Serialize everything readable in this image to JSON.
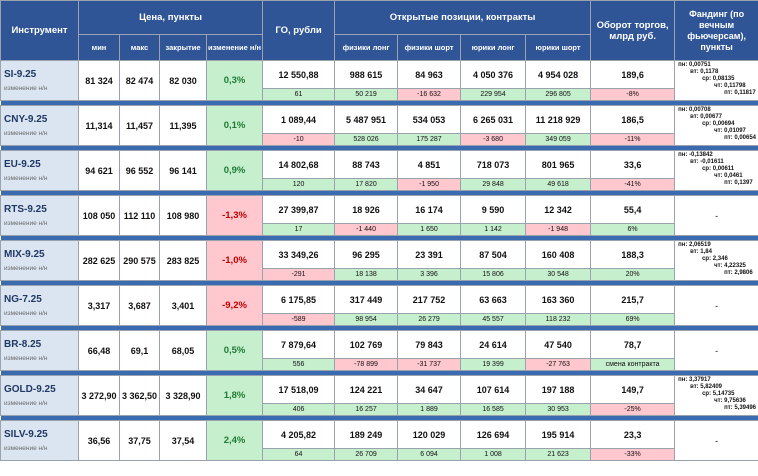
{
  "headers": {
    "instrument": "Инструмент",
    "price": "Цена, пункты",
    "go": "ГО, рубли",
    "oi": "Открытые позиции, контракты",
    "turnover": "Оборот торгов, млрд руб.",
    "funding": "Фандинг (по вечным фьючерсам), пункты",
    "min": "мин",
    "max": "макс",
    "close": "закрытие",
    "change": "изменение н/н",
    "phys_long": "физики лонг",
    "phys_short": "физики шорт",
    "jur_long": "юрики лонг",
    "jur_short": "юрики шорт"
  },
  "rows": [
    {
      "name": "SI-9.25",
      "sub": "изменение н/н",
      "min": "81 324",
      "max": "82 474",
      "close": "82 030",
      "chg": "0,3%",
      "chg_sign": "pos",
      "go": "12 550,88",
      "go_d": "61",
      "go_s": "pos",
      "pl": "988 615",
      "pl_d": "50 219",
      "pl_s": "pos",
      "ps": "84 963",
      "ps_d": "-16 632",
      "ps_s": "neg",
      "jl": "4 050 376",
      "jl_d": "229 954",
      "jl_s": "pos",
      "js": "4 954 028",
      "js_d": "296 805",
      "js_s": "pos",
      "to": "189,6",
      "to_d": "-8%",
      "to_s": "neg",
      "fund": [
        "пн: 0,00751",
        "вт: 0,1178",
        "ср: 0,08135",
        "чт: 0,11798",
        "пт: 0,11817"
      ]
    },
    {
      "name": "CNY-9.25",
      "sub": "изменение н/н",
      "min": "11,314",
      "max": "11,457",
      "close": "11,395",
      "chg": "0,1%",
      "chg_sign": "pos",
      "go": "1 089,44",
      "go_d": "-10",
      "go_s": "neg",
      "pl": "5 487 951",
      "pl_d": "528 026",
      "pl_s": "pos",
      "ps": "534 053",
      "ps_d": "175 287",
      "ps_s": "pos",
      "jl": "6 265 031",
      "jl_d": "-3 680",
      "jl_s": "neg",
      "js": "11 218 929",
      "js_d": "349 059",
      "js_s": "pos",
      "to": "186,5",
      "to_d": "-11%",
      "to_s": "neg",
      "fund": [
        "пн: 0,00708",
        "вт: 0,00677",
        "ср: 0,00694",
        "чт: 0,01097",
        "пт: 0,00654"
      ]
    },
    {
      "name": "EU-9.25",
      "sub": "изменение н/н",
      "min": "94 621",
      "max": "96 552",
      "close": "96 141",
      "chg": "0,9%",
      "chg_sign": "pos",
      "go": "14 802,68",
      "go_d": "120",
      "go_s": "pos",
      "pl": "88 743",
      "pl_d": "17 820",
      "pl_s": "pos",
      "ps": "4 851",
      "ps_d": "-1 950",
      "ps_s": "neg",
      "jl": "718 073",
      "jl_d": "29 848",
      "jl_s": "pos",
      "js": "801 965",
      "js_d": "49 618",
      "js_s": "pos",
      "to": "33,6",
      "to_d": "-41%",
      "to_s": "neg",
      "fund": [
        "пн: -0,13842",
        "вт: -0,01611",
        "ср: 0,00611",
        "чт: 0,0461",
        "пт: 0,1397"
      ]
    },
    {
      "name": "RTS-9.25",
      "sub": "изменение н/н",
      "min": "108 050",
      "max": "112 110",
      "close": "108 980",
      "chg": "-1,3%",
      "chg_sign": "neg",
      "go": "27 399,87",
      "go_d": "17",
      "go_s": "pos",
      "pl": "18 926",
      "pl_d": "-1 440",
      "pl_s": "neg",
      "ps": "16 174",
      "ps_d": "1 650",
      "ps_s": "pos",
      "jl": "9 590",
      "jl_d": "1 142",
      "jl_s": "pos",
      "js": "12 342",
      "js_d": "-1 948",
      "js_s": "neg",
      "to": "55,4",
      "to_d": "6%",
      "to_s": "pos",
      "fund": [],
      "fund_empty": "-"
    },
    {
      "name": "MIX-9.25",
      "sub": "изменение н/н",
      "min": "282 625",
      "max": "290 575",
      "close": "283 825",
      "chg": "-1,0%",
      "chg_sign": "neg",
      "go": "33 349,26",
      "go_d": "-291",
      "go_s": "neg",
      "pl": "96 295",
      "pl_d": "18 138",
      "pl_s": "pos",
      "ps": "23 391",
      "ps_d": "3 396",
      "ps_s": "pos",
      "jl": "87 504",
      "jl_d": "15 806",
      "jl_s": "pos",
      "js": "160 408",
      "js_d": "30 548",
      "js_s": "pos",
      "to": "188,3",
      "to_d": "20%",
      "to_s": "pos",
      "fund": [
        "пн: 2,06519",
        "вт: 1,84",
        "ср: 2,346",
        "чт: 4,22325",
        "пт: 2,9806"
      ]
    },
    {
      "name": "NG-7.25",
      "sub": "изменение н/н",
      "min": "3,317",
      "max": "3,687",
      "close": "3,401",
      "chg": "-9,2%",
      "chg_sign": "neg",
      "go": "6 175,85",
      "go_d": "-589",
      "go_s": "neg",
      "pl": "317 449",
      "pl_d": "98 954",
      "pl_s": "pos",
      "ps": "217 752",
      "ps_d": "26 279",
      "ps_s": "pos",
      "jl": "63 663",
      "jl_d": "45 557",
      "jl_s": "pos",
      "js": "163 360",
      "js_d": "118 232",
      "js_s": "pos",
      "to": "215,7",
      "to_d": "69%",
      "to_s": "pos",
      "fund": [],
      "fund_empty": "-"
    },
    {
      "name": "BR-8.25",
      "sub": "изменение н/н",
      "min": "66,48",
      "max": "69,1",
      "close": "68,05",
      "chg": "0,5%",
      "chg_sign": "pos",
      "go": "7 879,64",
      "go_d": "556",
      "go_s": "pos",
      "pl": "102 769",
      "pl_d": "-78 899",
      "pl_s": "neg",
      "ps": "79 843",
      "ps_d": "-31 737",
      "ps_s": "neg",
      "jl": "24 614",
      "jl_d": "19 399",
      "jl_s": "pos",
      "js": "47 540",
      "js_d": "-27 763",
      "js_s": "neg",
      "to": "78,7",
      "to_d": "смена контракта",
      "to_s": "pos",
      "fund": [],
      "fund_empty": "-"
    },
    {
      "name": "GOLD-9.25",
      "sub": "изменение н/н",
      "min": "3 272,90",
      "max": "3 362,50",
      "close": "3 328,90",
      "chg": "1,8%",
      "chg_sign": "pos",
      "go": "17 518,09",
      "go_d": "406",
      "go_s": "pos",
      "pl": "124 221",
      "pl_d": "16 257",
      "pl_s": "pos",
      "ps": "34 647",
      "ps_d": "1 889",
      "ps_s": "pos",
      "jl": "107 614",
      "jl_d": "16 585",
      "jl_s": "pos",
      "js": "197 188",
      "js_d": "30 953",
      "js_s": "pos",
      "to": "149,7",
      "to_d": "-25%",
      "to_s": "neg",
      "fund": [
        "пн: 3,37917",
        "вт: 5,82409",
        "ср: 5,14735",
        "чт: 9,75636",
        "пт: 5,39496"
      ]
    },
    {
      "name": "SILV-9.25",
      "sub": "изменение н/н",
      "min": "36,56",
      "max": "37,75",
      "close": "37,54",
      "chg": "2,4%",
      "chg_sign": "pos",
      "go": "4 205,82",
      "go_d": "64",
      "go_s": "pos",
      "pl": "189 249",
      "pl_d": "26 709",
      "pl_s": "pos",
      "ps": "120 029",
      "ps_d": "6 094",
      "ps_s": "pos",
      "jl": "126 694",
      "jl_d": "1 008",
      "jl_s": "pos",
      "js": "195 914",
      "js_d": "21 623",
      "js_s": "pos",
      "to": "23,3",
      "to_d": "-33%",
      "to_s": "neg",
      "fund": [],
      "fund_empty": "-"
    }
  ]
}
